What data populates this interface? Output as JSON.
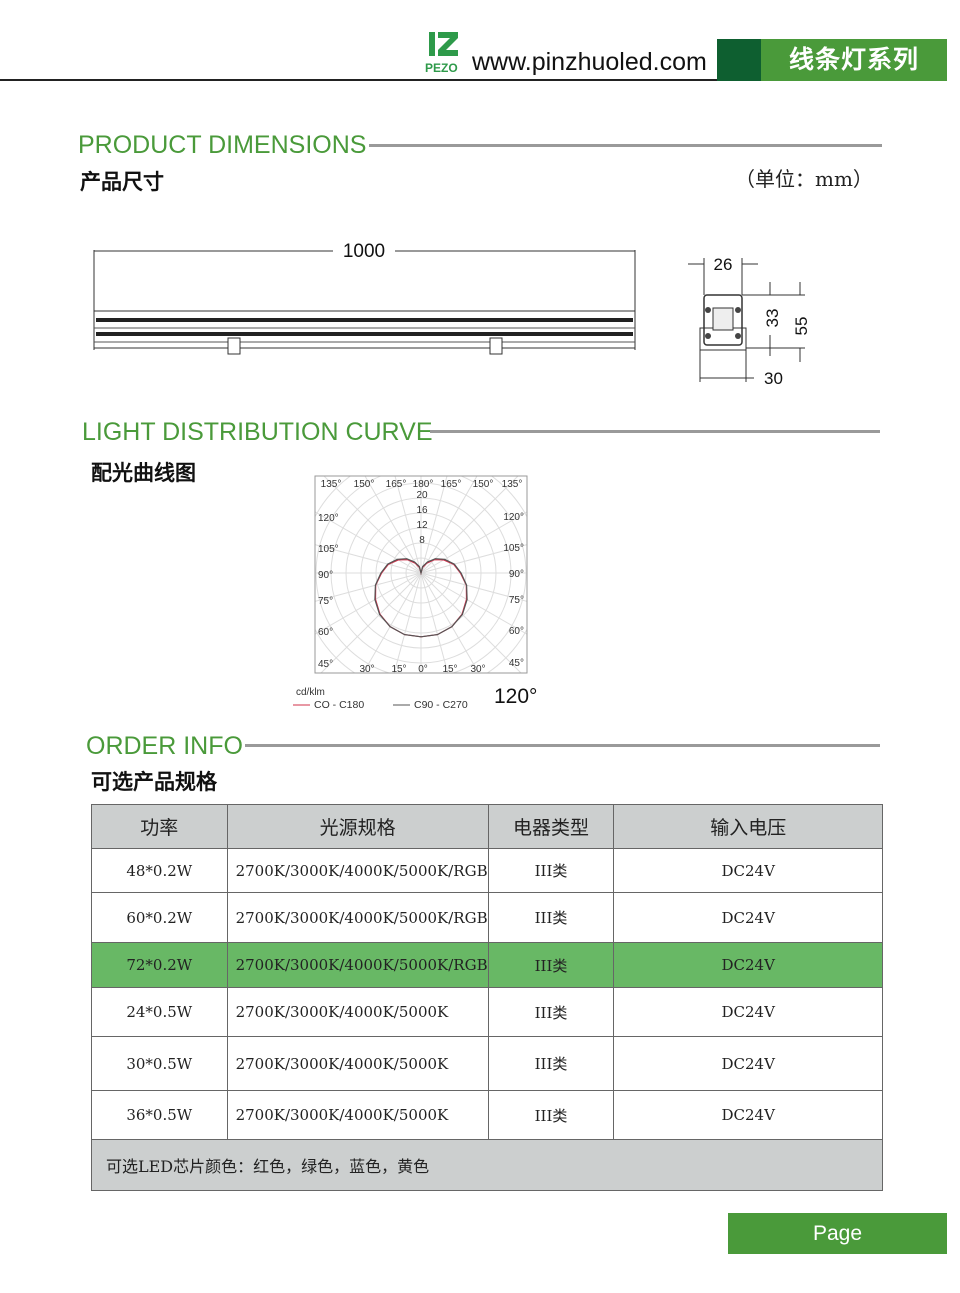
{
  "header": {
    "logo_text": "PEZO",
    "url": "www.pinzhuoled.com",
    "series": "线条灯系列",
    "brand_color": "#4a9a3a",
    "dark_color": "#0e5f30"
  },
  "dimensions": {
    "title": "PRODUCT DIMENSIONS",
    "subtitle": "产品尺寸",
    "unit": "（单位：mm）",
    "length": "1000",
    "width_top": "26",
    "height_inner": "33",
    "height_total": "55",
    "width_bottom": "30"
  },
  "distribution": {
    "title": "LIGHT DISTRIBUTION CURVE",
    "subtitle": "配光曲线图",
    "chart_data": {
      "type": "polar",
      "unit": "cd/klm",
      "radial_ticks": [
        "8",
        "12",
        "16",
        "20"
      ],
      "radial_max": 20,
      "angle_labels_top": [
        "135°",
        "150°",
        "165°",
        "180°",
        "165°",
        "150°",
        "135°"
      ],
      "angle_labels_left": [
        "120°",
        "105°",
        "90°",
        "75°",
        "60°",
        "45°"
      ],
      "angle_labels_right": [
        "120°",
        "105°",
        "90°",
        "75°",
        "60°",
        "45°"
      ],
      "angle_labels_bottom": [
        "30°",
        "15°",
        "0°",
        "15°",
        "30°"
      ],
      "series": [
        {
          "name": "CO - C180",
          "color": "#d0304a",
          "angles": [
            0,
            15,
            30,
            45,
            60,
            75,
            90,
            105,
            120,
            135,
            150,
            165,
            180
          ],
          "values": [
            17,
            17,
            16.5,
            15.5,
            14,
            12.5,
            10.5,
            9,
            7,
            5,
            3,
            1.5,
            0
          ]
        },
        {
          "name": "C90 - C270",
          "color": "#555555",
          "angles": [
            0,
            15,
            30,
            45,
            60,
            75,
            90,
            105,
            120,
            135,
            150,
            165,
            180
          ],
          "values": [
            17,
            17,
            16.5,
            15.6,
            14.2,
            12.6,
            10.7,
            9.2,
            7.3,
            5.4,
            3.4,
            1.8,
            0
          ]
        }
      ],
      "beam_angle": "120°"
    }
  },
  "order": {
    "title": "ORDER INFO",
    "subtitle": "可选产品规格",
    "columns": [
      "功率",
      "光源规格",
      "电器类型",
      "输入电压"
    ],
    "rows": [
      [
        "48*0.2W",
        "2700K/3000K/4000K/5000K/RGB",
        "III类",
        "DC24V"
      ],
      [
        "60*0.2W",
        "2700K/3000K/4000K/5000K/RGB",
        "III类",
        "DC24V"
      ],
      [
        "72*0.2W",
        "2700K/3000K/4000K/5000K/RGB",
        "III类",
        "DC24V"
      ],
      [
        "24*0.5W",
        "2700K/3000K/4000K/5000K",
        "III类",
        "DC24V"
      ],
      [
        "30*0.5W",
        "2700K/3000K/4000K/5000K",
        "III类",
        "DC24V"
      ],
      [
        "36*0.5W",
        "2700K/3000K/4000K/5000K",
        "III类",
        "DC24V"
      ]
    ],
    "highlight_row": 2,
    "footer": "可选LED芯片颜色：红色，绿色，蓝色，黄色"
  },
  "footer": {
    "page": "Page"
  }
}
